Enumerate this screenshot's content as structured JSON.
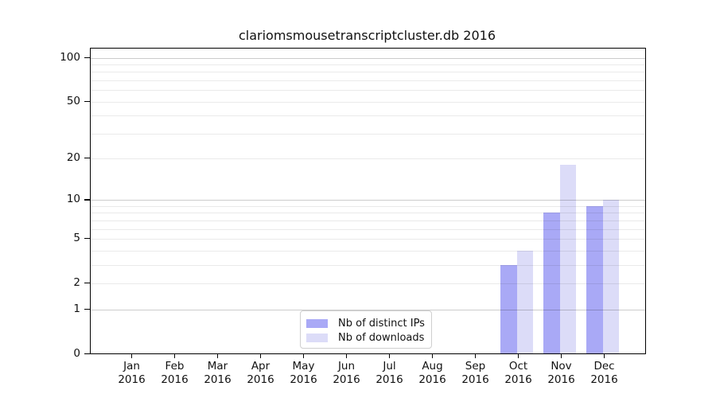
{
  "chart_data": {
    "type": "bar",
    "title": "clariomsmousetranscriptcluster.db 2016",
    "categories": [
      "Jan 2016",
      "Feb 2016",
      "Mar 2016",
      "Apr 2016",
      "May 2016",
      "Jun 2016",
      "Jul 2016",
      "Aug 2016",
      "Sep 2016",
      "Oct 2016",
      "Nov 2016",
      "Dec 2016"
    ],
    "x_tick_month": [
      "Jan",
      "Feb",
      "Mar",
      "Apr",
      "May",
      "Jun",
      "Jul",
      "Aug",
      "Sep",
      "Oct",
      "Nov",
      "Dec"
    ],
    "x_tick_year": "2016",
    "series": [
      {
        "name": "Nb of distinct IPs",
        "color": "#a9a9f6",
        "values": [
          0,
          0,
          0,
          0,
          0,
          0,
          0,
          0,
          0,
          3,
          8,
          9
        ]
      },
      {
        "name": "Nb of downloads",
        "color": "#dcdcf8",
        "values": [
          0,
          0,
          0,
          0,
          0,
          0,
          0,
          0,
          0,
          4,
          18,
          10
        ]
      }
    ],
    "yscale": "log1p",
    "ylim": [
      0,
      116
    ],
    "y_ticks": [
      0,
      1,
      2,
      5,
      10,
      20,
      50,
      100
    ],
    "grid": {
      "on": true,
      "major": [
        1,
        10,
        100
      ],
      "minor": [
        2,
        3,
        4,
        5,
        6,
        7,
        8,
        9,
        20,
        30,
        40,
        50,
        60,
        70,
        80,
        90
      ]
    },
    "legend": {
      "position": "bottom-center",
      "entries": [
        "Nb of distinct IPs",
        "Nb of downloads"
      ]
    }
  },
  "colors": {
    "bar_distinct_ips": "#a9a9f6",
    "bar_downloads": "#dcdcf8",
    "grid_major": "#cccccc",
    "grid_minor": "#ebebeb",
    "axis": "#000000",
    "text": "#111111",
    "legend_border": "#cfcfcf",
    "background": "#ffffff"
  }
}
